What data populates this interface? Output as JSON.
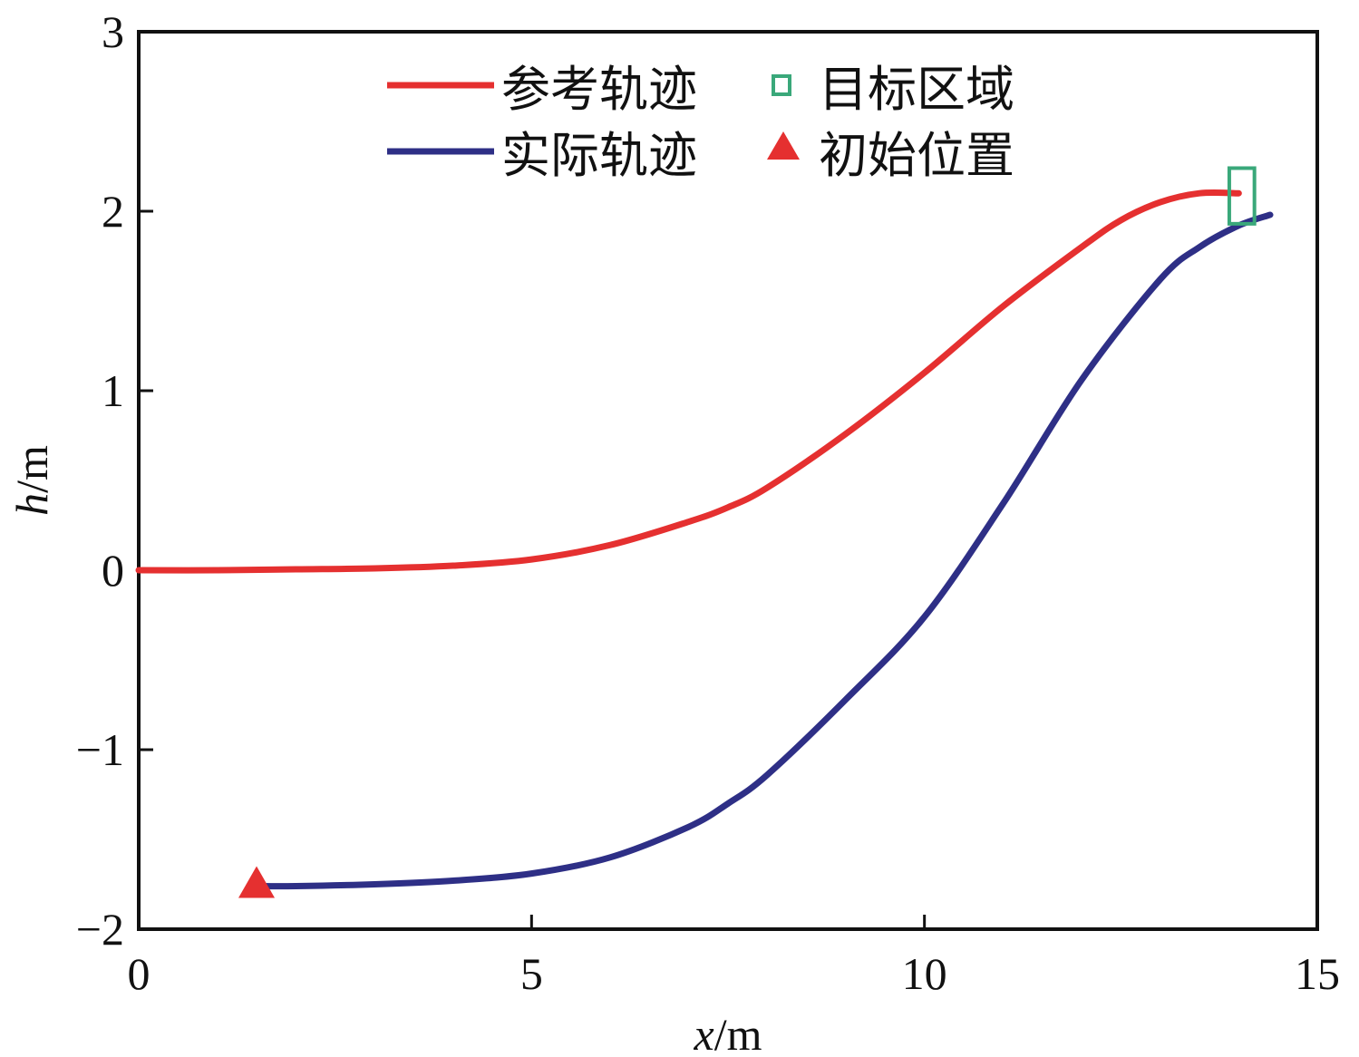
{
  "chart_data": {
    "type": "line",
    "xlabel_var": "x",
    "xlabel_unit": "/m",
    "ylabel_var": "h",
    "ylabel_unit": "/m",
    "xlim": [
      0,
      15
    ],
    "ylim": [
      -2,
      3
    ],
    "xticks": [
      0,
      5,
      10,
      15
    ],
    "yticks": [
      -2,
      -1,
      0,
      1,
      2,
      3
    ],
    "xtick_labels": [
      "0",
      "5",
      "10",
      "15"
    ],
    "ytick_labels": [
      "−2",
      "−1",
      "0",
      "1",
      "2",
      "3"
    ],
    "grid": false,
    "legend_placement": "top-center",
    "series": [
      {
        "name": "参考轨迹",
        "color": "#e53030",
        "x": [
          0,
          1,
          2,
          3,
          4,
          5,
          6,
          7,
          7.5,
          8,
          9,
          10,
          11,
          12,
          12.5,
          13,
          13.5,
          14
        ],
        "y": [
          0,
          0,
          0.005,
          0.01,
          0.025,
          0.06,
          0.14,
          0.27,
          0.35,
          0.46,
          0.76,
          1.1,
          1.47,
          1.8,
          1.95,
          2.05,
          2.1,
          2.1
        ]
      },
      {
        "name": "实际轨迹",
        "color": "#2e2f86",
        "x": [
          1.5,
          2,
          3,
          4,
          5,
          6,
          7,
          7.5,
          8,
          9,
          10,
          11,
          12,
          13,
          13.5,
          14,
          14.4
        ],
        "y": [
          -1.76,
          -1.76,
          -1.75,
          -1.73,
          -1.69,
          -1.6,
          -1.43,
          -1.3,
          -1.14,
          -0.72,
          -0.26,
          0.37,
          1.06,
          1.62,
          1.8,
          1.92,
          1.98
        ]
      }
    ],
    "markers": [
      {
        "name": "目标区域",
        "shape": "rectangle",
        "color": "#3aa87a",
        "x": [
          13.88,
          14.2
        ],
        "y": [
          1.93,
          2.24
        ]
      },
      {
        "name": "初始位置",
        "shape": "triangle",
        "color": "#e53030",
        "x": 1.5,
        "y": -1.76
      }
    ]
  }
}
